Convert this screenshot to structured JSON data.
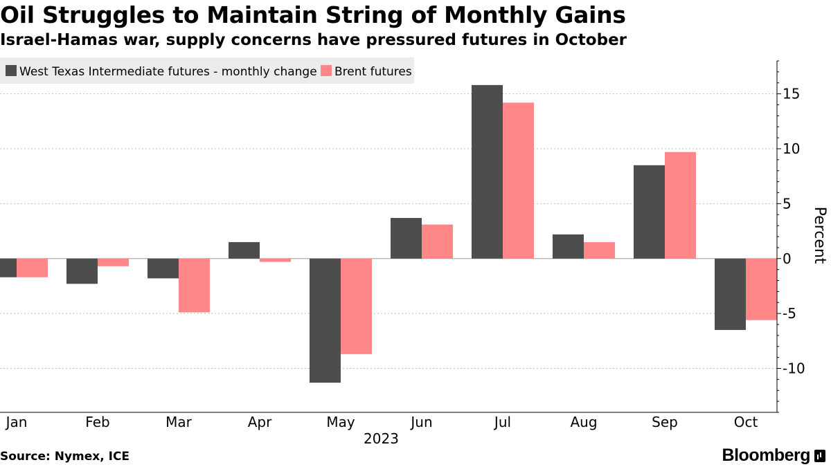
{
  "title": "Oil Struggles to Maintain String of Monthly Gains",
  "subtitle": "Israel-Hamas war, supply concerns have pressured futures in October",
  "source": "Source: Nymex, ICE",
  "brand": "Bloomberg",
  "colors": {
    "wti": "#4d4d4d",
    "brent": "#ff8787",
    "grid": "#bdbdbd",
    "legend_bg": "#ececec"
  },
  "chart_data": {
    "type": "bar",
    "categories": [
      "Jan",
      "Feb",
      "Mar",
      "Apr",
      "May",
      "Jun",
      "Jul",
      "Aug",
      "Sep",
      "Oct"
    ],
    "xlabel": "2023",
    "ylabel": "Percent",
    "ylim": [
      -14,
      18
    ],
    "yticks": [
      -10,
      -5,
      0,
      5,
      10,
      15
    ],
    "grid": true,
    "legend_position": "top-left",
    "series": [
      {
        "name": "West Texas Intermediate futures - monthly change",
        "values": [
          -1.7,
          -2.3,
          -1.8,
          1.5,
          -11.3,
          3.7,
          15.8,
          2.2,
          8.5,
          -6.5
        ]
      },
      {
        "name": "Brent futures",
        "values": [
          -1.7,
          -0.7,
          -4.9,
          -0.3,
          -8.7,
          3.1,
          14.2,
          1.5,
          9.7,
          -5.6
        ]
      }
    ]
  }
}
